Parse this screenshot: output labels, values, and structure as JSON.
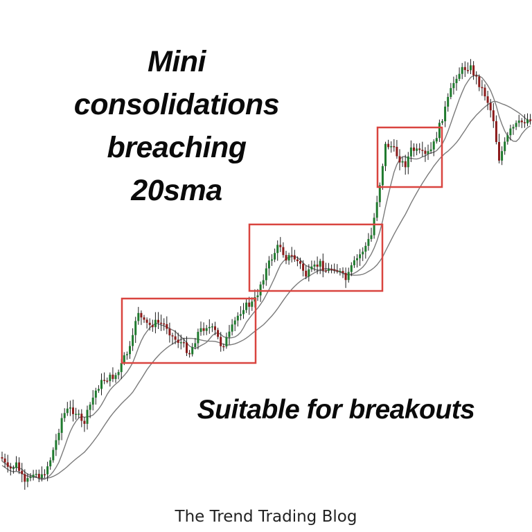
{
  "headline": [
    "Mini",
    "consolidations",
    "breaching",
    "20sma"
  ],
  "subheadline": "Suitable for breakouts",
  "footer": "The Trend Trading Blog",
  "chart_data": {
    "type": "candlestick",
    "title": "",
    "xlabel": "",
    "ylabel": "",
    "axes_visible": false,
    "grid": false,
    "trend": "uptrend",
    "series": [
      {
        "name": "",
        "kind": "candles",
        "up_color": "#1f7a2e",
        "down_color": "#8b1a1a"
      },
      {
        "name": "",
        "kind": "moving-average",
        "color": "#7a7a7a"
      },
      {
        "name": "",
        "kind": "moving-average",
        "color": "#7a7a7a"
      }
    ],
    "annotation_boxes": 3,
    "box_color": "#d9443f"
  },
  "colors": {
    "up": "#1f7a2e",
    "down": "#8b1a1a",
    "ma": "#7a7a7a",
    "box": "#d9443f",
    "text": "#0a0a0a"
  }
}
